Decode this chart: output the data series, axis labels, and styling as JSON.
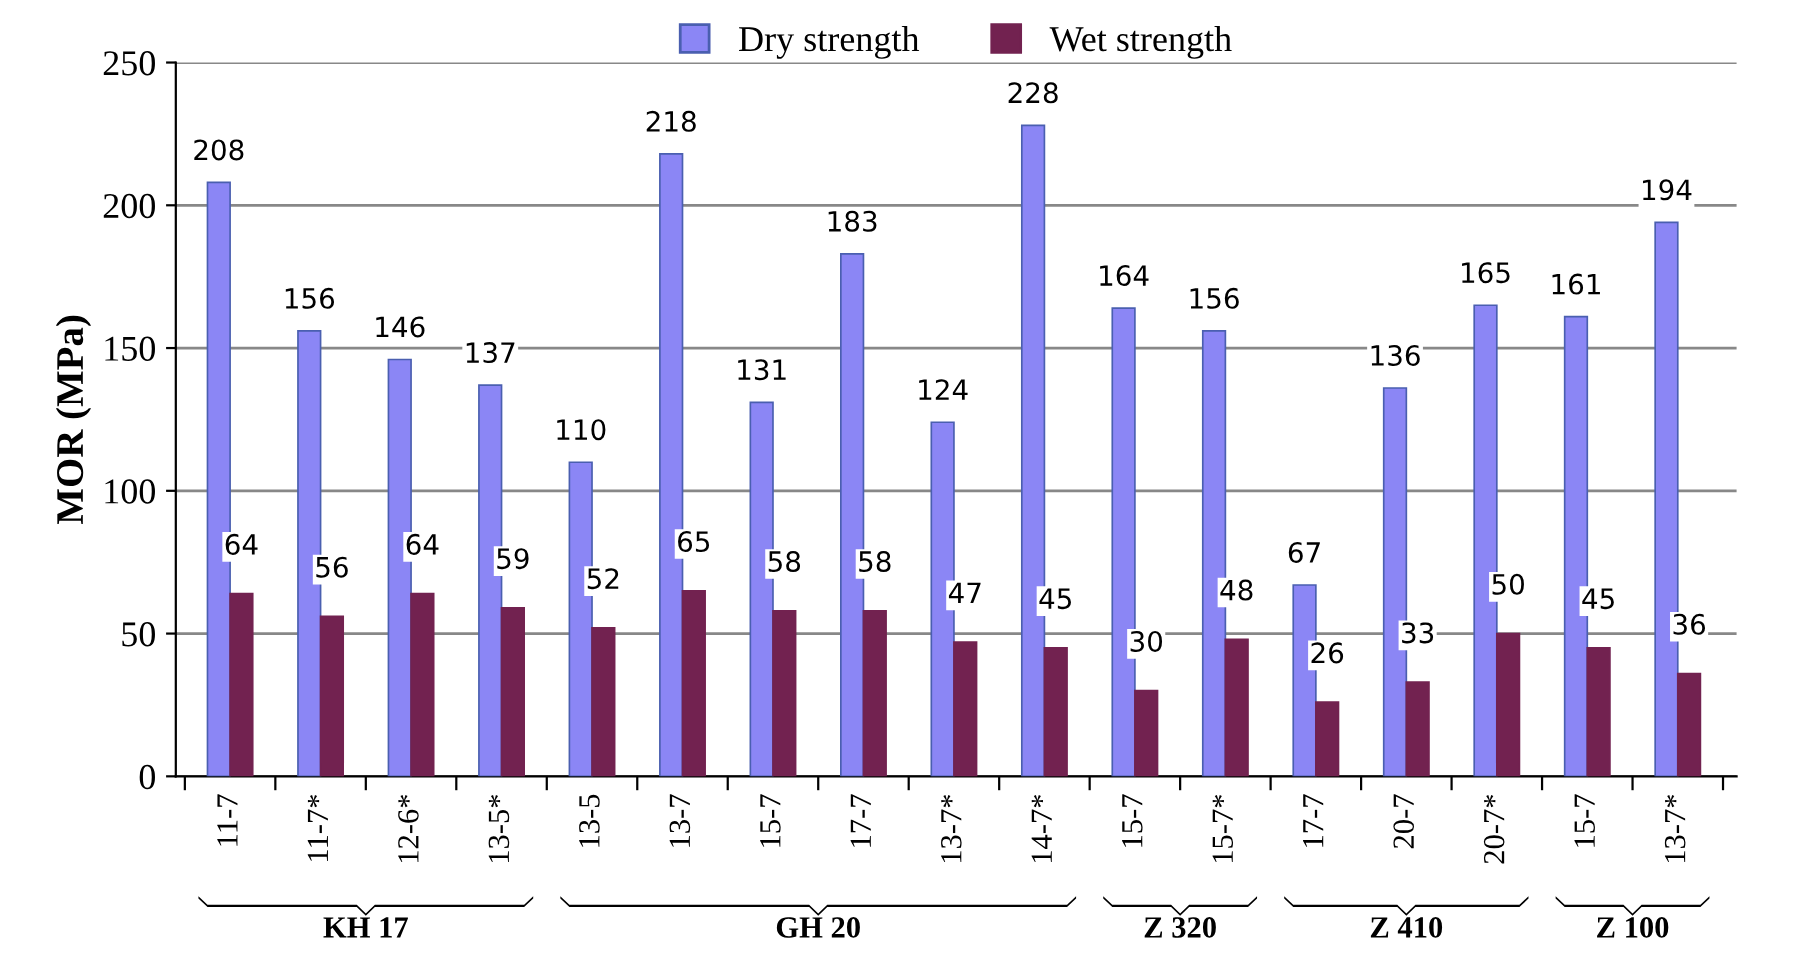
{
  "chart_data": {
    "type": "bar",
    "ylabel": "MOR (MPa)",
    "categories": [
      "11-7",
      "11-7*",
      "12-6*",
      "13-5*",
      "13-5",
      "13-7",
      "15-7",
      "17-7",
      "13-7*",
      "14-7*",
      "15-7",
      "15-7*",
      "17-7",
      "20-7",
      "20-7*",
      "15-7",
      "13-7*"
    ],
    "series": [
      {
        "name": "Dry strength",
        "color": "#8b86f5",
        "values": [
          208,
          156,
          146,
          137,
          110,
          218,
          131,
          183,
          124,
          228,
          164,
          156,
          67,
          136,
          165,
          161,
          194
        ]
      },
      {
        "name": "Wet strength",
        "color": "#722250",
        "values": [
          64,
          56,
          64,
          59,
          52,
          65,
          58,
          58,
          47,
          45,
          30,
          48,
          26,
          33,
          50,
          45,
          36
        ]
      }
    ],
    "ylim": [
      0,
      250
    ],
    "yticks": [
      0,
      50,
      100,
      150,
      200,
      250
    ],
    "grid": "y",
    "legend": "top",
    "data_labels": true,
    "annotations": [
      "KH 17",
      "GH 20",
      "Z 320",
      "Z 410",
      "Z 100"
    ]
  }
}
